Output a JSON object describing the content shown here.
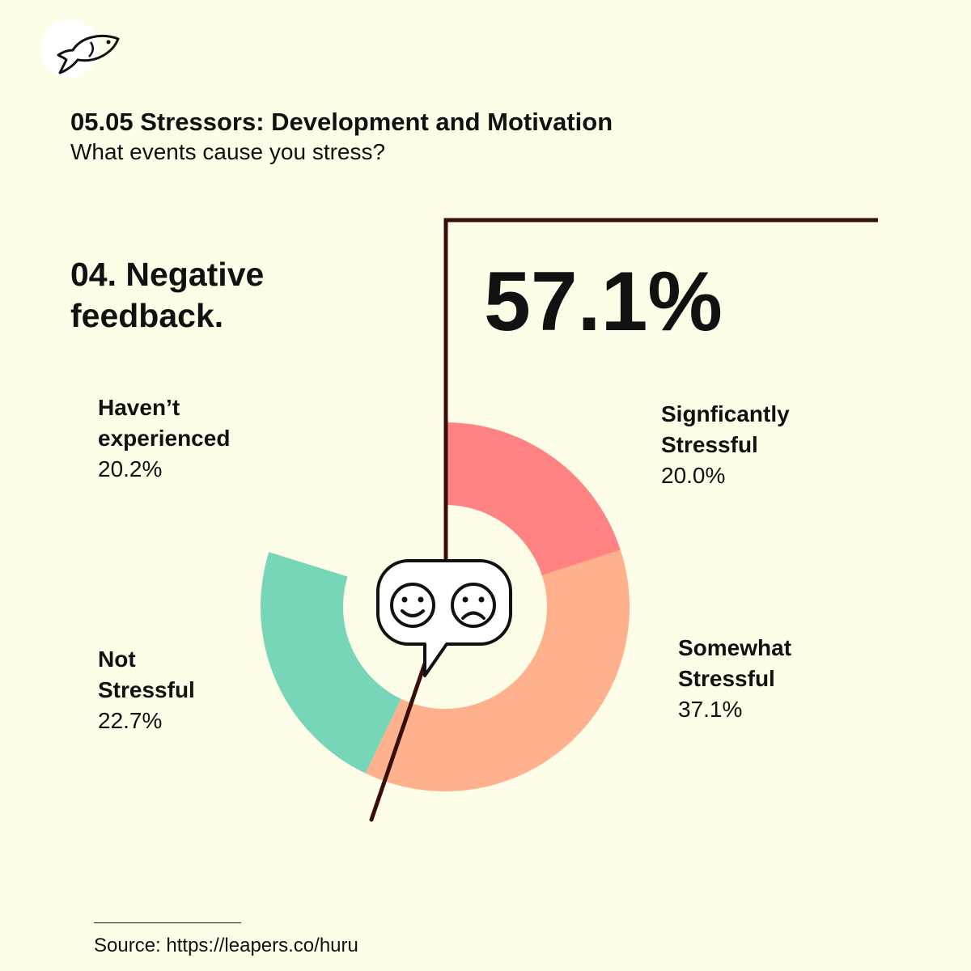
{
  "header": {
    "title": "05.05 Stressors: Development and Motivation",
    "subtitle": "What events cause you stress?"
  },
  "question": [
    "04. Negative",
    "feedback."
  ],
  "highlight_value": "57.1%",
  "source": "Source: https://leapers.co/huru",
  "colors": {
    "background": "#FEFDE8",
    "significantly": "#FF8383",
    "somewhat": "#FFB08C",
    "not": "#77D6B8",
    "line": "#3A0D0D"
  },
  "chart_data": {
    "type": "pie",
    "style": "donut",
    "categories": [
      "Signficantly Stressful",
      "Somewhat Stressful",
      "Not Stressful",
      "Haven’t experienced"
    ],
    "values": [
      20.0,
      37.1,
      22.7,
      20.2
    ],
    "value_labels": [
      "20.0%",
      "37.1%",
      "22.7%",
      "20.2%"
    ],
    "label_lines": [
      [
        "Signficantly",
        "Stressful"
      ],
      [
        "Somewhat",
        "Stressful"
      ],
      [
        "Not",
        "Stressful"
      ],
      [
        "Haven’t",
        "experienced"
      ]
    ],
    "drawn": [
      true,
      true,
      true,
      false
    ],
    "start_angle_deg": 0,
    "direction": "clockwise"
  }
}
